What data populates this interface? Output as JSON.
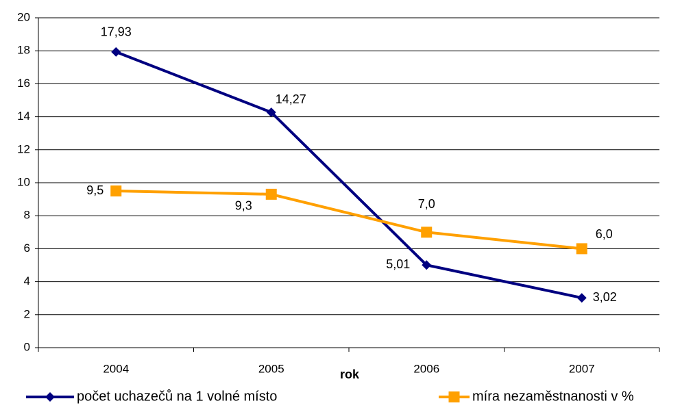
{
  "chart_data": {
    "type": "line",
    "x_label": "rok",
    "categories": [
      "2004",
      "2005",
      "2006",
      "2007"
    ],
    "series": [
      {
        "name": "počet uchazečů na 1 volné místo",
        "color": "#000080",
        "marker": "diamond",
        "values": [
          17.93,
          14.27,
          5.01,
          3.02
        ],
        "value_labels": [
          "17,93",
          "14,27",
          "5,01",
          "3,02"
        ]
      },
      {
        "name": "míra nezaměstnanosti v %",
        "color": "#ffa000",
        "marker": "square",
        "values": [
          9.5,
          9.3,
          7.0,
          6.0
        ],
        "value_labels": [
          "9,5",
          "9,3",
          "7,0",
          "6,0"
        ]
      }
    ],
    "ylim": [
      0,
      20
    ],
    "yticks": [
      0,
      2,
      4,
      6,
      8,
      10,
      12,
      14,
      16,
      18,
      20
    ],
    "grid": true
  }
}
